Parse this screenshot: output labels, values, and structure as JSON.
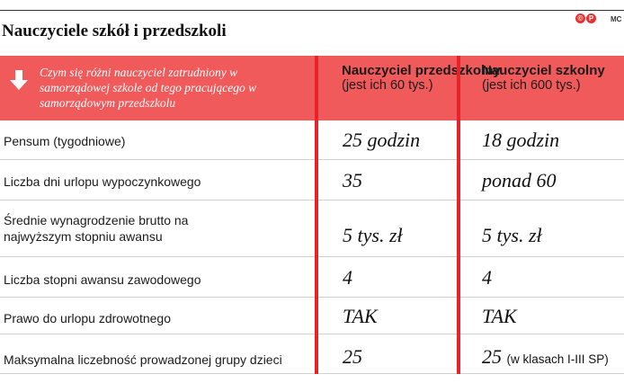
{
  "title": "Nauczyciele szkół i przedszkoli",
  "logo_text": "MC",
  "colors": {
    "accent_red": "#e8222a",
    "header_bg": "#f05a5a"
  },
  "header": {
    "question": "Czym się różni nauczyciel zatrudniony w samorządowej szkole od tego pracującego w samorządowym przedszkolu",
    "columns": [
      {
        "title": "Nauczyciel przedszkolny",
        "subtitle": "(jest ich 60 tys.)"
      },
      {
        "title": "Nauczyciel szkolny",
        "subtitle": "(jest ich 600 tys.)"
      }
    ]
  },
  "rows": [
    {
      "label": "Pensum (tygodniowe)",
      "preschool": "25 godzin",
      "school": "18 godzin"
    },
    {
      "label": "Liczba dni urlopu wypoczynkowego",
      "preschool": "35",
      "school": "ponad 60"
    },
    {
      "label": "Średnie wynagrodzenie brutto na najwyższym stopniu awansu",
      "preschool": "5 tys. zł",
      "school": "5 tys. zł"
    },
    {
      "label": "Liczba stopni awansu zawodowego",
      "preschool": "4",
      "school": "4"
    },
    {
      "label": "Prawo do urlopu zdrowotnego",
      "preschool": "TAK",
      "school": "TAK"
    },
    {
      "label": "Maksymalna liczebność prowadzonej grupy dzieci",
      "preschool": "25",
      "school": "25",
      "school_note": "(w klasach I-III SP)"
    }
  ]
}
